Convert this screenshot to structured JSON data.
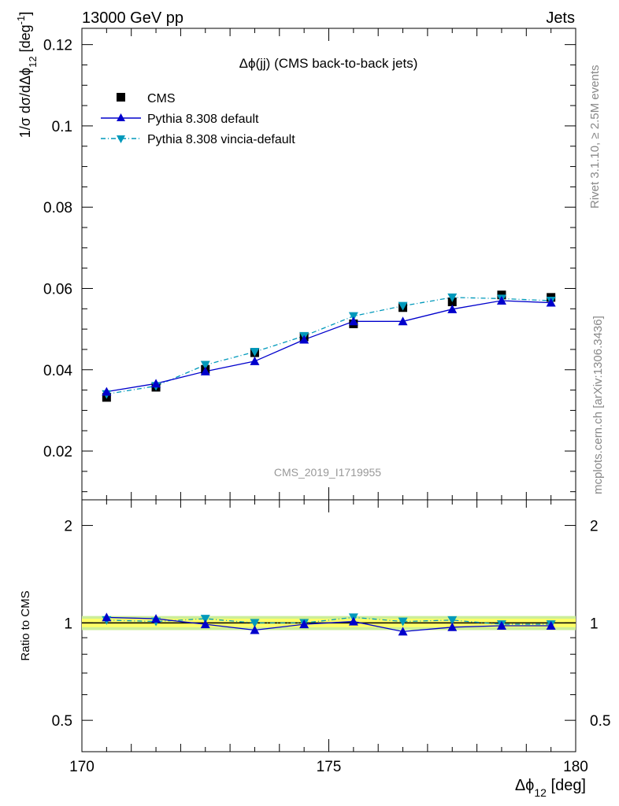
{
  "header": {
    "energy_label": "13000 GeV pp",
    "category_label": "Jets"
  },
  "side_labels": {
    "rivet": "Rivet 3.1.10, ≥ 2.5M events",
    "source": "mcplots.cern.ch [arXiv:1306.3436]"
  },
  "plot_title": "Δϕ(jj) (CMS back-to-back jets)",
  "analysis_id": "CMS_2019_I1719955",
  "axis": {
    "y_main_label": "1/σ dσ/dΔϕ_12 [deg^-1]",
    "y_ratio_label": "Ratio to CMS",
    "x_label": "Δϕ_12 [deg]"
  },
  "legend": {
    "cms": "CMS",
    "pythia_default": "Pythia 8.308 default",
    "pythia_vincia": "Pythia 8.308 vincia-default"
  },
  "colors": {
    "cms": "#000000",
    "pythia_default": "#0000cc",
    "pythia_vincia": "#0099bb",
    "band_inner": "#ffff66",
    "band_outer": "#ccee99"
  },
  "chart_data": [
    {
      "type": "line",
      "panel": "main",
      "x": [
        170.5,
        171.5,
        172.5,
        173.5,
        174.5,
        175.5,
        176.5,
        177.5,
        178.5,
        179.5
      ],
      "xlim": [
        170,
        180
      ],
      "ylim": [
        0.008,
        0.124
      ],
      "yticks": [
        0.02,
        0.04,
        0.06,
        0.08,
        0.1,
        0.12
      ],
      "xticks": [
        170,
        175,
        180
      ],
      "series": [
        {
          "name": "CMS",
          "marker": "square",
          "values": [
            0.0332,
            0.0357,
            0.0401,
            0.0442,
            0.0481,
            0.0513,
            0.0553,
            0.0567,
            0.0584,
            0.0578
          ]
        },
        {
          "name": "Pythia 8.308 default",
          "marker": "triangle-up",
          "values": [
            0.0346,
            0.0366,
            0.0396,
            0.0421,
            0.0474,
            0.0519,
            0.0519,
            0.0549,
            0.057,
            0.0565
          ]
        },
        {
          "name": "Pythia 8.308 vincia-default",
          "marker": "triangle-down",
          "values": [
            0.034,
            0.036,
            0.0412,
            0.0444,
            0.0483,
            0.0532,
            0.0557,
            0.0578,
            0.0575,
            0.057
          ]
        }
      ]
    },
    {
      "type": "line",
      "panel": "ratio",
      "x": [
        170.5,
        171.5,
        172.5,
        173.5,
        174.5,
        175.5,
        176.5,
        177.5,
        178.5,
        179.5
      ],
      "xlim": [
        170,
        180
      ],
      "ylim": [
        0.4,
        2.4
      ],
      "yticks": [
        0.5,
        1,
        2
      ],
      "ytick_labels": [
        "0.5",
        "1",
        "2"
      ],
      "band": {
        "inner": 0.03,
        "outer": 0.05
      },
      "series": [
        {
          "name": "Pythia 8.308 default",
          "values": [
            1.04,
            1.03,
            0.99,
            0.95,
            0.99,
            1.01,
            0.94,
            0.97,
            0.98,
            0.98
          ]
        },
        {
          "name": "Pythia 8.308 vincia-default",
          "values": [
            1.02,
            1.01,
            1.03,
            1.0,
            1.0,
            1.04,
            1.01,
            1.02,
            0.99,
            0.99
          ]
        }
      ]
    }
  ]
}
